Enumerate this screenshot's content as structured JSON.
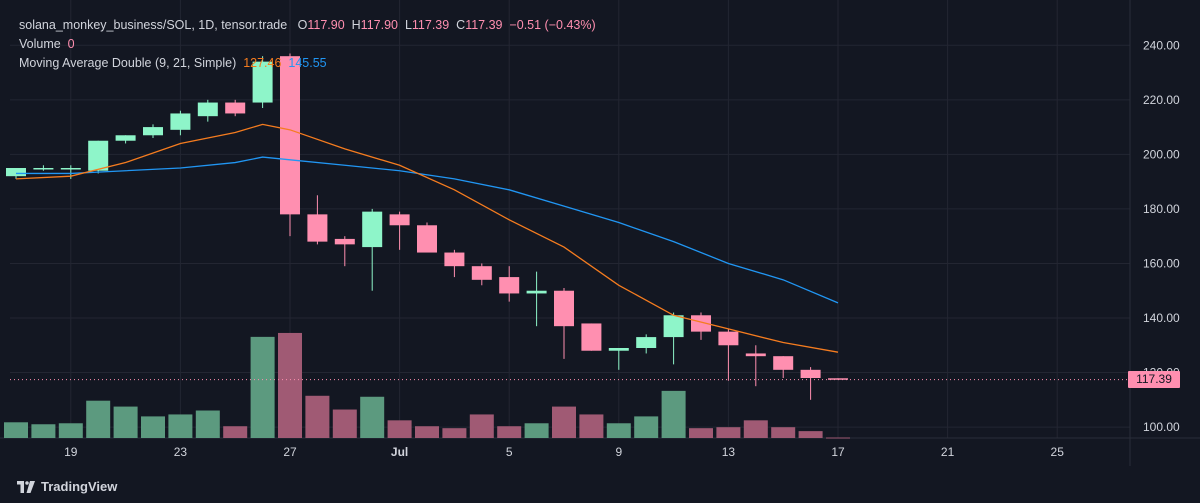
{
  "legend": {
    "symbol_line": "solana_monkey_business/SOL, 1D, tensor.trade",
    "o_label": "O",
    "o_value": "117.90",
    "h_label": "H",
    "h_value": "117.90",
    "l_label": "L",
    "l_value": "117.39",
    "c_label": "C",
    "c_value": "117.39",
    "change": "−0.51 (−0.43%)",
    "volume_label": "Volume",
    "volume_value": "0",
    "ma_label": "Moving Average Double (9, 21, Simple)",
    "ma_fast_value": "127.46",
    "ma_slow_value": "145.55"
  },
  "price_tag": "117.39",
  "brand": "TradingView",
  "colors": {
    "background": "#131722",
    "up": "#8ef5c9",
    "down": "#ff8fb0",
    "up_volume": "#5c9a7f",
    "down_volume": "#a05a74",
    "ma_fast": "#f57c1f",
    "ma_slow": "#2196f3",
    "grid": "#232632",
    "axis_text": "#d1d4dc"
  },
  "chart_data": {
    "type": "candlestick",
    "ylim": [
      96,
      250
    ],
    "y_ticks": [
      240,
      220,
      200,
      180,
      160,
      140,
      120,
      100
    ],
    "y_tick_labels": [
      "240.00",
      "220.00",
      "200.00",
      "180.00",
      "160.00",
      "140.00",
      "120.00",
      "100.00"
    ],
    "x_ticks": [
      {
        "day": 19,
        "label": "19"
      },
      {
        "day": 23,
        "label": "23"
      },
      {
        "day": 27,
        "label": "27"
      },
      {
        "day": 31,
        "label": "Jul"
      },
      {
        "day": 35,
        "label": "5"
      },
      {
        "day": 39,
        "label": "9"
      },
      {
        "day": 43,
        "label": "13"
      },
      {
        "day": 47,
        "label": "17"
      },
      {
        "day": 51,
        "label": "21"
      },
      {
        "day": 55,
        "label": "25"
      }
    ],
    "last_price": 117.39,
    "candles": [
      {
        "day": 17,
        "o": 192,
        "h": 195,
        "l": 191,
        "c": 195,
        "v": 16
      },
      {
        "day": 18,
        "o": 195,
        "h": 196,
        "l": 194,
        "c": 195,
        "v": 14
      },
      {
        "day": 19,
        "o": 195,
        "h": 196,
        "l": 191,
        "c": 195,
        "v": 15
      },
      {
        "day": 20,
        "o": 194,
        "h": 205,
        "l": 193,
        "c": 205,
        "v": 38
      },
      {
        "day": 21,
        "o": 205,
        "h": 207,
        "l": 204,
        "c": 207,
        "v": 32
      },
      {
        "day": 22,
        "o": 207,
        "h": 211,
        "l": 206,
        "c": 210,
        "v": 22
      },
      {
        "day": 23,
        "o": 209,
        "h": 216,
        "l": 207,
        "c": 215,
        "v": 24
      },
      {
        "day": 24,
        "o": 214,
        "h": 220,
        "l": 212,
        "c": 219,
        "v": 28
      },
      {
        "day": 25,
        "o": 219,
        "h": 220,
        "l": 214,
        "c": 215,
        "v": 12
      },
      {
        "day": 26,
        "o": 219,
        "h": 236,
        "l": 217,
        "c": 234,
        "v": 103
      },
      {
        "day": 27,
        "o": 236,
        "h": 237,
        "l": 170,
        "c": 178,
        "v": 107
      },
      {
        "day": 28,
        "o": 178,
        "h": 185,
        "l": 167,
        "c": 168,
        "v": 43
      },
      {
        "day": 29,
        "o": 169,
        "h": 170,
        "l": 159,
        "c": 167,
        "v": 29
      },
      {
        "day": 30,
        "o": 166,
        "h": 180,
        "l": 150,
        "c": 179,
        "v": 42
      },
      {
        "day": 31,
        "o": 178,
        "h": 179,
        "l": 165,
        "c": 174,
        "v": 18
      },
      {
        "day": 32,
        "o": 174,
        "h": 175,
        "l": 164,
        "c": 164,
        "v": 12
      },
      {
        "day": 33,
        "o": 164,
        "h": 165,
        "l": 155,
        "c": 159,
        "v": 10
      },
      {
        "day": 34,
        "o": 159,
        "h": 160,
        "l": 152,
        "c": 154,
        "v": 24
      },
      {
        "day": 35,
        "o": 155,
        "h": 159,
        "l": 146,
        "c": 149,
        "v": 12
      },
      {
        "day": 36,
        "o": 149,
        "h": 157,
        "l": 137,
        "c": 150,
        "v": 15
      },
      {
        "day": 37,
        "o": 150,
        "h": 151,
        "l": 125,
        "c": 137,
        "v": 32
      },
      {
        "day": 38,
        "o": 138,
        "h": 138,
        "l": 128,
        "c": 128,
        "v": 24
      },
      {
        "day": 39,
        "o": 128,
        "h": 129,
        "l": 121,
        "c": 129,
        "v": 15
      },
      {
        "day": 40,
        "o": 129,
        "h": 134,
        "l": 127,
        "c": 133,
        "v": 22
      },
      {
        "day": 41,
        "o": 133,
        "h": 142,
        "l": 123,
        "c": 141,
        "v": 48
      },
      {
        "day": 42,
        "o": 141,
        "h": 142,
        "l": 132,
        "c": 135,
        "v": 10
      },
      {
        "day": 43,
        "o": 135,
        "h": 136,
        "l": 117,
        "c": 130,
        "v": 11
      },
      {
        "day": 44,
        "o": 127,
        "h": 130,
        "l": 115,
        "c": 126,
        "v": 18
      },
      {
        "day": 45,
        "o": 126,
        "h": 126,
        "l": 118,
        "c": 121,
        "v": 11
      },
      {
        "day": 46,
        "o": 121,
        "h": 122,
        "l": 110,
        "c": 118,
        "v": 7
      },
      {
        "day": 47,
        "o": 117.9,
        "h": 117.9,
        "l": 117.39,
        "c": 117.39,
        "v": 0.5
      }
    ],
    "volume_max": 110,
    "ma_fast": {
      "name": "MA 9",
      "days": [
        17,
        19,
        21,
        23,
        25,
        26,
        27,
        29,
        31,
        33,
        35,
        37,
        39,
        41,
        43,
        45,
        47
      ],
      "values": [
        191,
        192,
        197,
        204,
        208,
        211,
        209,
        202,
        196,
        187,
        176,
        166,
        152,
        141,
        136,
        131,
        127.46
      ]
    },
    "ma_slow": {
      "name": "MA 21",
      "days": [
        17,
        19,
        21,
        23,
        25,
        26,
        27,
        29,
        31,
        33,
        35,
        37,
        39,
        41,
        43,
        45,
        47
      ],
      "values": [
        193,
        193,
        194,
        195,
        197,
        199,
        198,
        196,
        194,
        191,
        187,
        181,
        175,
        168,
        160,
        154,
        145.55
      ]
    }
  }
}
